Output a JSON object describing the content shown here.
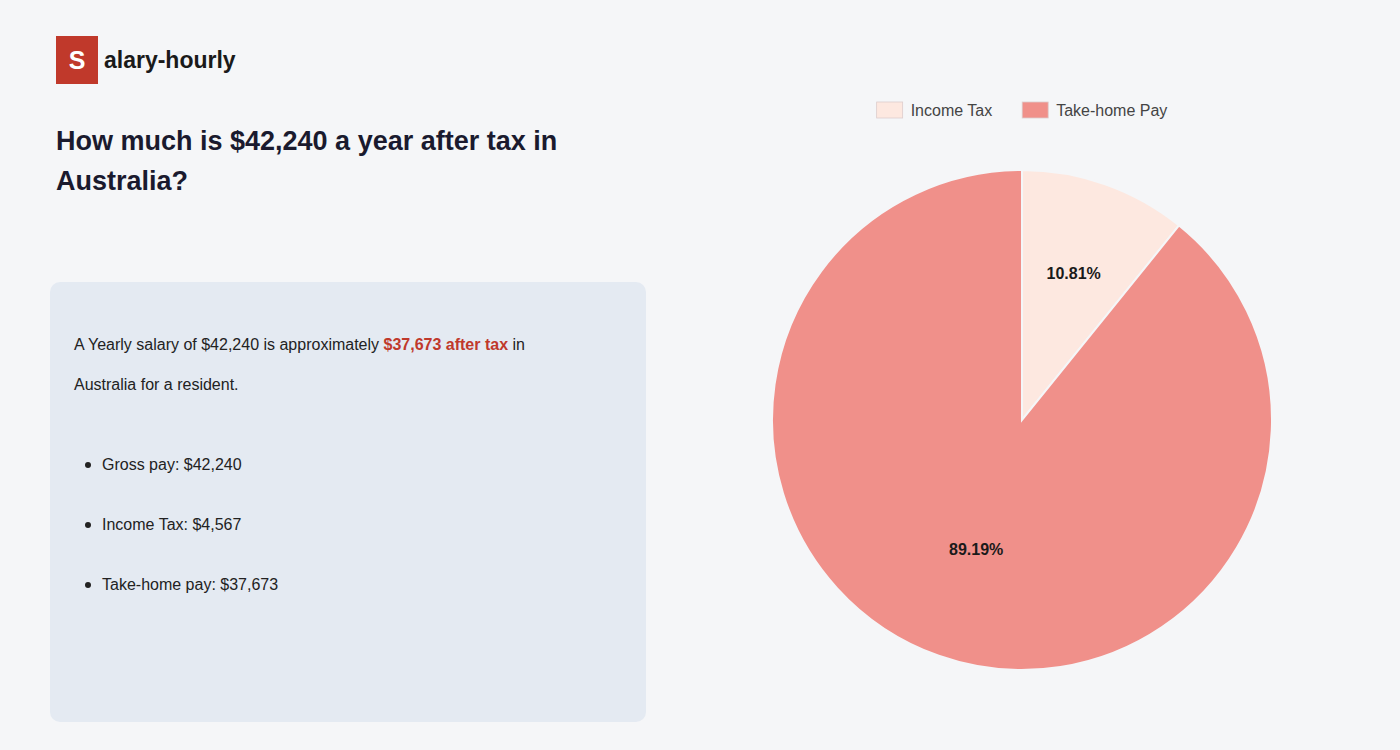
{
  "chart_data": {
    "type": "pie",
    "categories": [
      "Income Tax",
      "Take-home Pay"
    ],
    "values": [
      10.81,
      89.19
    ],
    "value_labels": [
      "10.81%",
      "89.19%"
    ],
    "colors": [
      "#fde8e0",
      "#f0908a"
    ],
    "data_labels": true,
    "legend": "top"
  },
  "logo": {
    "texts": [
      "S",
      "alary-hourly"
    ],
    "color": "#c0392b"
  },
  "heading": [
    "How much is $42,240 a year after tax in",
    "Australia?"
  ],
  "body": [
    [
      {
        "text": "A Yearly salary of $42,240 is approximately "
      },
      {
        "text": "$37,673 after tax",
        "color": "#c0392b"
      },
      {
        "text": " in"
      }
    ],
    [
      {
        "text": "Australia for a resident."
      }
    ]
  ],
  "bullets": [
    "Gross pay: $42,240",
    "Income Tax: $4,567",
    "Take-home pay: $37,673"
  ]
}
